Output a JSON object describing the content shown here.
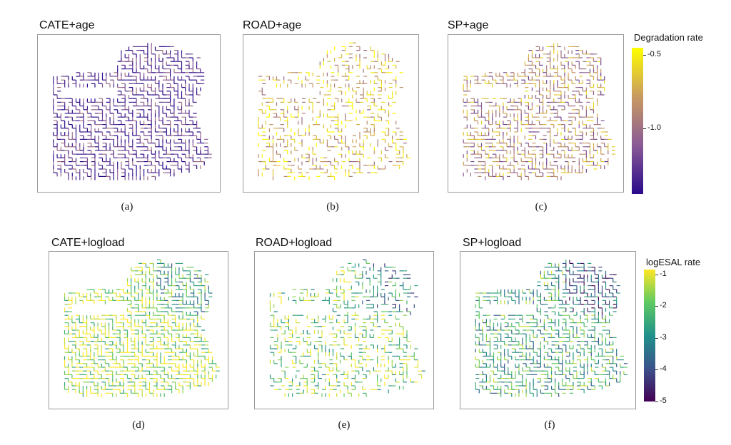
{
  "panels": [
    {
      "title": "CATE+age",
      "caption": "(a)",
      "scale": "degradation",
      "density": 1.0,
      "bias": 0.15
    },
    {
      "title": "ROAD+age",
      "caption": "(b)",
      "scale": "degradation",
      "density": 0.55,
      "bias": 0.75
    },
    {
      "title": "SP+age",
      "caption": "(c)",
      "scale": "degradation",
      "density": 0.85,
      "bias": 0.55
    },
    {
      "title": "CATE+logload",
      "caption": "(d)",
      "scale": "logesal",
      "density": 1.0,
      "bias": 0.88
    },
    {
      "title": "ROAD+logload",
      "caption": "(e)",
      "scale": "logesal",
      "density": 0.6,
      "bias": 0.78
    },
    {
      "title": "SP+logload",
      "caption": "(f)",
      "scale": "logesal",
      "density": 0.9,
      "bias": 0.6
    }
  ],
  "legends": {
    "degradation": {
      "title": "Degradation rate",
      "ticks": [
        "-0.5",
        "-1.0"
      ],
      "tick_values": [
        -0.5,
        -1.0
      ],
      "range": [
        -1.45,
        -0.45
      ],
      "colors": [
        "#ffff00",
        "#c89a60",
        "#8a5a96",
        "#2a0a8a"
      ]
    },
    "logesal": {
      "title": "logESAL rate",
      "ticks": [
        "-1",
        "-2",
        "-3",
        "-4",
        "-5"
      ],
      "tick_values": [
        -1,
        -2,
        -3,
        -4,
        -5
      ],
      "range": [
        -5,
        -0.85
      ],
      "colors": [
        "#fde725",
        "#5ec962",
        "#21918c",
        "#3b528b",
        "#440154"
      ]
    }
  }
}
